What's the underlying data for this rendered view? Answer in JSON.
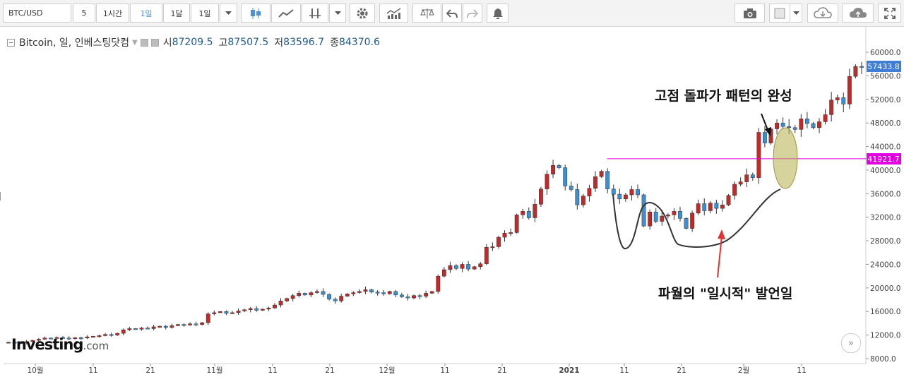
{
  "toolbar": {
    "symbol": "BTC/USD",
    "interval_input": "5",
    "tf_1h": "1시간",
    "tf_1d": "1일",
    "tf_1mo": "1달",
    "tf_sel": "1일",
    "icons": [
      "candlestick-icon",
      "line-chart-icon",
      "drawing-tools-icon",
      "dropdown-icon",
      "settings-icon",
      "indicators-icon",
      "compare-icon",
      "undo-icon",
      "redo-icon",
      "alert-icon",
      "camera-icon",
      "color-box-icon",
      "dropdown-icon",
      "cloud-download-icon",
      "cloud-upload-icon",
      "fullscreen-icon"
    ]
  },
  "legend": {
    "name": "Bitcoin, 일, 인베스팅닷컴",
    "open_label": "시",
    "open": "87209.5",
    "high_label": "고",
    "high": "87507.5",
    "low_label": "저",
    "low": "83596.7",
    "close_label": "종",
    "close": "84370.6"
  },
  "annotations": {
    "top": "고점 돌파가 패턴의 완성",
    "bottom": "파월의 \"일시적\" 발언일"
  },
  "logo": {
    "brand": "Investing",
    "suffix": ".com"
  },
  "colors": {
    "up": "#c22a2a",
    "down": "#3a8fd6",
    "level": "#e000e0",
    "price_tag": "#3f7ed6",
    "highlight": "#b5b04a"
  },
  "chart_data": {
    "type": "candlestick",
    "ylim": [
      7000,
      62000
    ],
    "yticks": [
      "8000.0",
      "12000.0",
      "16000.0",
      "20000.0",
      "24000.0",
      "28000.0",
      "32000.0",
      "36000.0",
      "40000.0",
      "44000.0",
      "48000.0",
      "52000.0",
      "56000.0",
      "60000.0"
    ],
    "xticks": [
      "10월",
      "11",
      "21",
      "11월",
      "11",
      "21",
      "12월",
      "11",
      "21",
      "2021",
      "11",
      "21",
      "2월",
      "11"
    ],
    "current_price": "57433.8",
    "level_price": "41921.7",
    "level_value": 41921.7,
    "closes": [
      10800,
      10750,
      10700,
      10900,
      11100,
      11300,
      11500,
      11450,
      11600,
      11500,
      11400,
      11550,
      11500,
      11700,
      11800,
      11900,
      12100,
      12000,
      12300,
      12900,
      13100,
      13000,
      13200,
      13100,
      13400,
      13500,
      13300,
      13600,
      13800,
      13700,
      13900,
      13800,
      14100,
      15600,
      15800,
      16000,
      15700,
      15800,
      16100,
      16300,
      16500,
      16200,
      16400,
      16600,
      17100,
      17800,
      18200,
      18700,
      19100,
      18800,
      19200,
      19400,
      18900,
      18100,
      17800,
      18600,
      19000,
      19200,
      19400,
      19700,
      19300,
      19200,
      19000,
      19400,
      18800,
      18500,
      18300,
      18700,
      18600,
      19100,
      19400,
      22000,
      23100,
      23800,
      23300,
      24000,
      23200,
      23600,
      24100,
      26900,
      27000,
      28600,
      29300,
      29400,
      32400,
      33000,
      31900,
      34200,
      36800,
      39300,
      40800,
      40400,
      37300,
      36700,
      34100,
      35600,
      36900,
      38900,
      39800,
      36800,
      35900,
      35100,
      35800,
      36700,
      35800,
      30500,
      32900,
      31300,
      32200,
      32400,
      33000,
      31800,
      30100,
      32700,
      34300,
      33100,
      34400,
      33500,
      34100,
      35700,
      37600,
      38000,
      39200,
      38700,
      46400,
      44600,
      47000,
      48000,
      47400,
      47200,
      46900,
      48700,
      47900,
      47200,
      48200,
      49400,
      51900,
      52300,
      51200,
      55900,
      57600,
      57433.8
    ]
  }
}
